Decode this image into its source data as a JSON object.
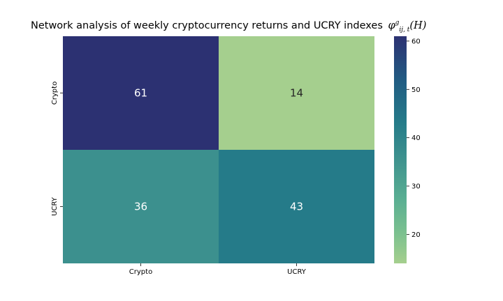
{
  "chart_data": {
    "type": "heatmap",
    "title": "Network analysis of weekly cryptocurrency returns and UCRY indexes",
    "title_symbol": {
      "base": "φ",
      "sup": "g",
      "sub": "ij, t",
      "suffix": "(H)"
    },
    "x_categories": [
      "Crypto",
      "UCRY"
    ],
    "y_categories": [
      "Crypto",
      "UCRY"
    ],
    "values": [
      [
        61,
        14
      ],
      [
        36,
        43
      ]
    ],
    "colorbar": {
      "min": 14,
      "max": 61,
      "ticks": [
        20,
        30,
        40,
        50,
        60
      ]
    },
    "colormap": "crest",
    "xlabel": "",
    "ylabel": ""
  }
}
